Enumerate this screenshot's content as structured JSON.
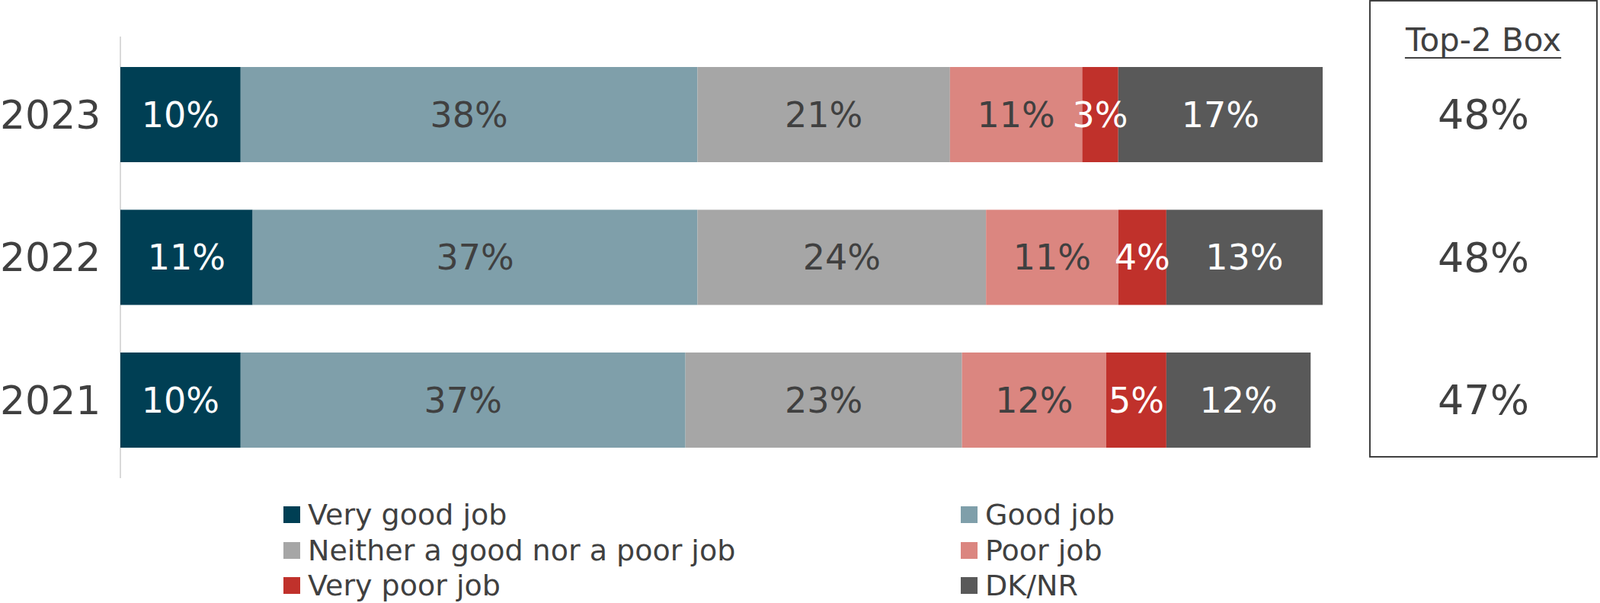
{
  "chart_data": {
    "type": "bar",
    "orientation": "horizontal",
    "stacked": true,
    "data_labels": true,
    "tick_labels": "y",
    "legend": "bottom",
    "xlim": [
      0,
      100
    ],
    "categories": [
      "2023",
      "2022",
      "2021"
    ],
    "series": [
      {
        "name": "Very good job",
        "color": "#003f54",
        "values": [
          10,
          11,
          10
        ],
        "value_labels": [
          "10%",
          "11%",
          "10%"
        ]
      },
      {
        "name": "Good job",
        "color": "#7f9faa",
        "values": [
          38,
          37,
          37
        ],
        "value_labels": [
          "38%",
          "37%",
          "37%"
        ]
      },
      {
        "name": "Neither a good nor a poor job",
        "color": "#a6a6a6",
        "values": [
          21,
          24,
          23
        ],
        "value_labels": [
          "21%",
          "24%",
          "23%"
        ]
      },
      {
        "name": "Poor job",
        "color": "#db8680",
        "values": [
          11,
          11,
          12
        ],
        "value_labels": [
          "11%",
          "11%",
          "12%"
        ]
      },
      {
        "name": "Very poor job",
        "color": "#c0312b",
        "values": [
          3,
          4,
          5
        ],
        "value_labels": [
          "3%",
          "4%",
          "5%"
        ]
      },
      {
        "name": "DK/NR",
        "color": "#595959",
        "values": [
          17,
          13,
          12
        ],
        "value_labels": [
          "17%",
          "13%",
          "12%"
        ]
      }
    ],
    "top2_box": {
      "title": "Top-2 Box",
      "values": [
        48,
        48,
        47
      ],
      "value_labels": [
        "48%",
        "48%",
        "47%"
      ]
    }
  }
}
